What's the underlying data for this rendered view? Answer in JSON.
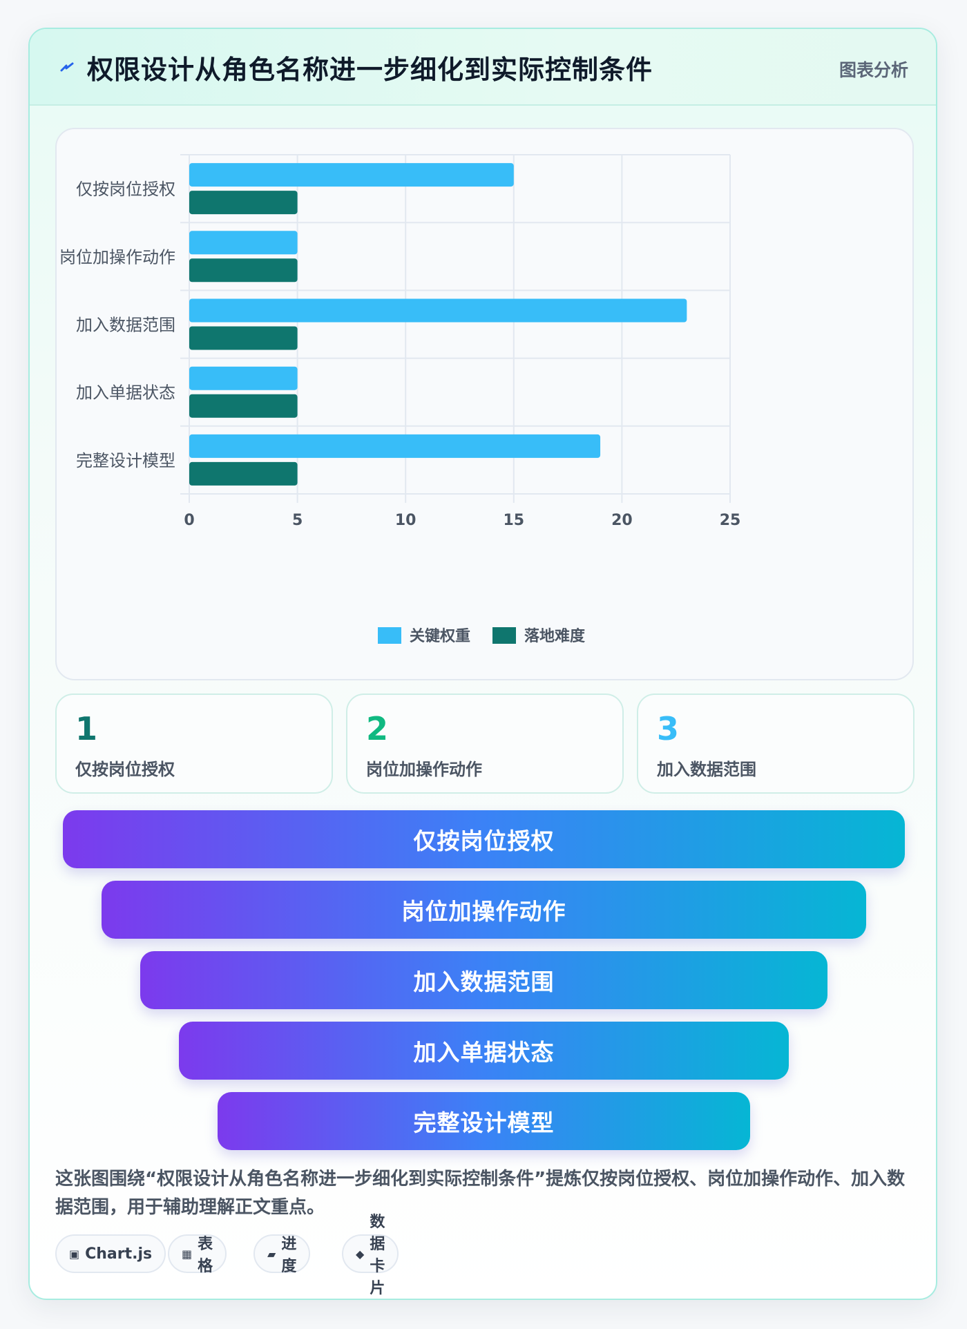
{
  "header": {
    "title": "权限设计从角色名称进一步细化到实际控制条件",
    "tag": "图表分析"
  },
  "chart_data": {
    "type": "bar",
    "orientation": "horizontal",
    "categories": [
      "仅按岗位授权",
      "岗位加操作动作",
      "加入数据范围",
      "加入单据状态",
      "完整设计模型"
    ],
    "series": [
      {
        "name": "关键权重",
        "values": [
          15,
          5,
          23,
          5,
          19
        ],
        "color": "#38bdf8"
      },
      {
        "name": "落地难度",
        "values": [
          5,
          5,
          5,
          5,
          5
        ],
        "color": "#0f766e"
      }
    ],
    "xlim": [
      0,
      25
    ],
    "xticks": [
      0,
      5,
      10,
      15,
      20,
      25
    ],
    "grid": true,
    "legend_position": "bottom"
  },
  "stats": [
    {
      "num": "1",
      "label": "仅按岗位授权",
      "color": "#0f766e"
    },
    {
      "num": "2",
      "label": "岗位加操作动作",
      "color": "#10b981"
    },
    {
      "num": "3",
      "label": "加入数据范围",
      "color": "#38bdf8"
    }
  ],
  "funnel": [
    "仅按岗位授权",
    "岗位加操作动作",
    "加入数据范围",
    "加入单据状态",
    "完整设计模型"
  ],
  "summary": "这张图围绕“权限设计从角色名称进一步细化到实际控制条件”提炼仅按岗位授权、岗位加操作动作、加入数据范围，用于辅助理解正文重点。",
  "chips": [
    {
      "icon": "▣",
      "icon_name": "chart-icon",
      "label": "Chart.js"
    },
    {
      "icon": "▦",
      "icon_name": "table-icon",
      "label": "表格"
    },
    {
      "icon": "▰",
      "icon_name": "progress-icon",
      "label": "进度"
    },
    {
      "icon": "◆",
      "icon_name": "card-icon",
      "label": "数据卡片"
    }
  ]
}
